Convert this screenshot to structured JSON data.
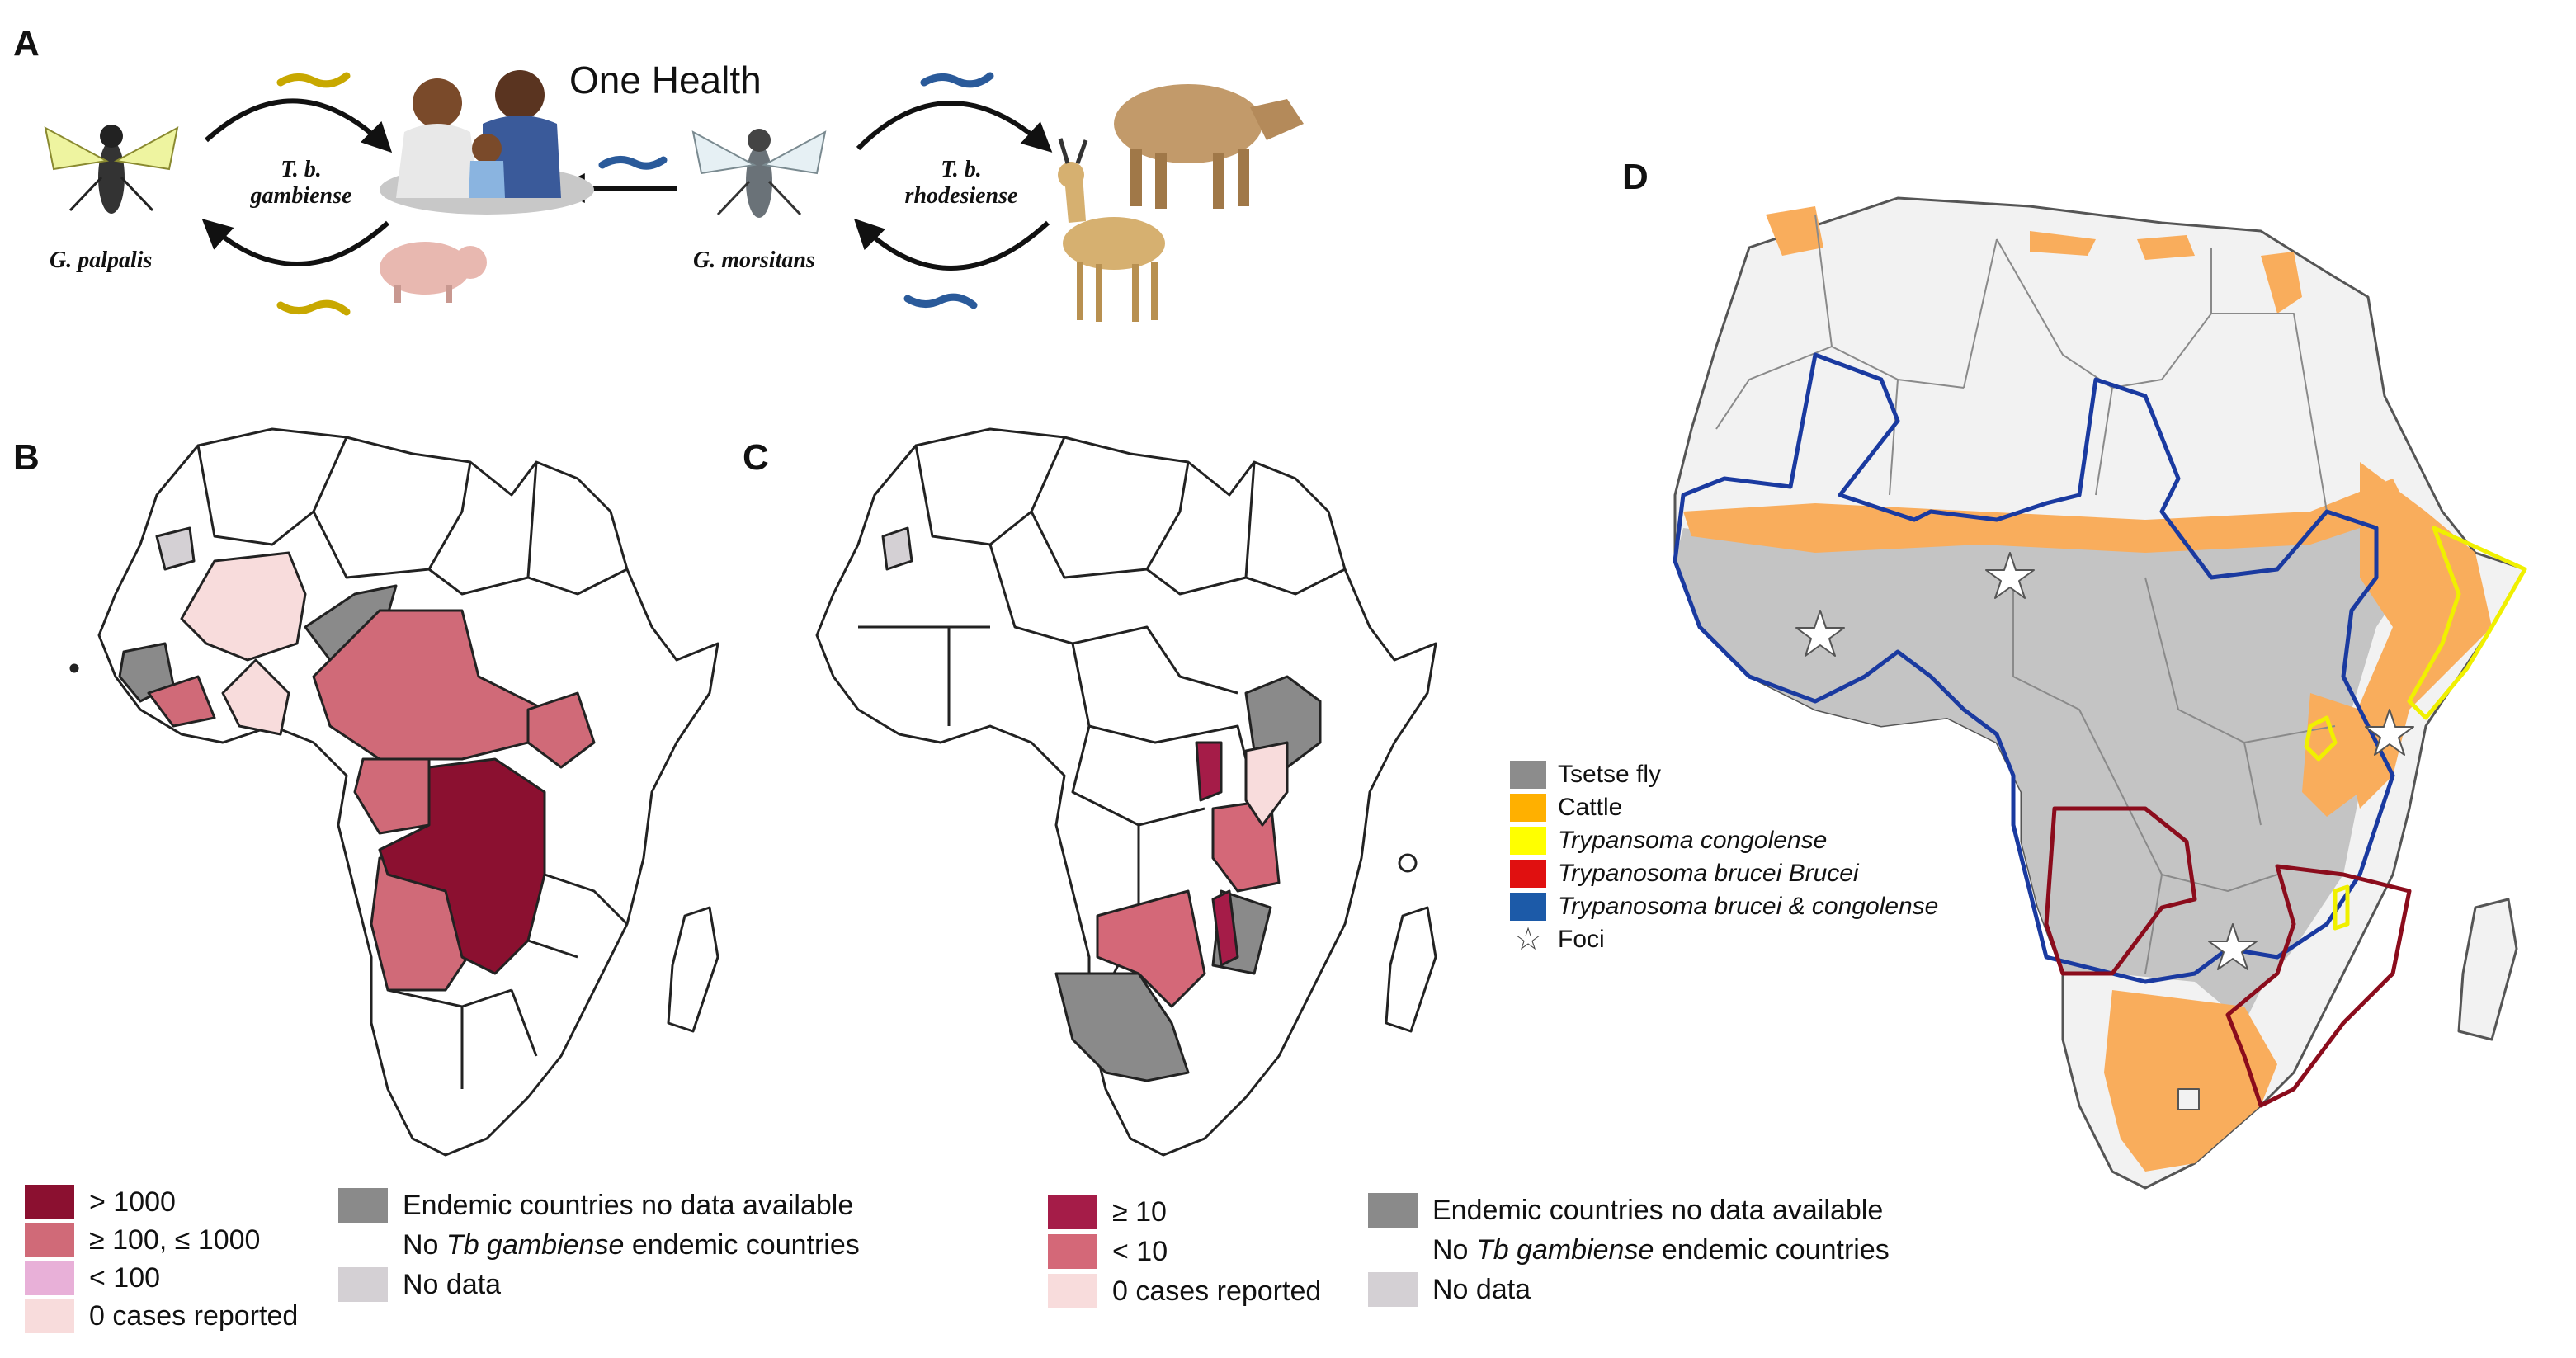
{
  "panels": {
    "a": "A",
    "b": "B",
    "c": "C",
    "d": "D"
  },
  "panel_a": {
    "title": "One Health",
    "cycle_left": "T. b. gambiense",
    "cycle_right": "T. b. rhodesiense",
    "vector_left": "G. palpalis",
    "vector_right": "G. morsitans"
  },
  "legend_b": {
    "items": [
      {
        "label": "> 1000",
        "color": "#8b1030"
      },
      {
        "label": "≥ 100, ≤ 1000",
        "color": "#d06a78"
      },
      {
        "label": "< 100",
        "color": "#e8b0d8"
      },
      {
        "label": "0 cases reported",
        "color": "#f8dcdc"
      }
    ],
    "grey_items": [
      {
        "label": "Endemic countries no data available",
        "color": "#8a8a8a"
      },
      {
        "prefix": "No ",
        "italic": "Tb gambiense",
        "suffix": " endemic countries",
        "color": "#ffffff"
      },
      {
        "label": "No data",
        "color": "#d4d0d4"
      }
    ]
  },
  "legend_c": {
    "items": [
      {
        "label": "≥ 10",
        "color": "#a51c48"
      },
      {
        "label": "< 10",
        "color": "#d46878"
      },
      {
        "label": "0 cases reported",
        "color": "#f8dcdc"
      }
    ],
    "grey_items": [
      {
        "label": "Endemic countries no data available",
        "color": "#8a8a8a"
      },
      {
        "prefix": "No ",
        "italic": "Tb gambiense",
        "suffix": " endemic countries",
        "color": "#ffffff"
      },
      {
        "label": "No data",
        "color": "#d4d0d4"
      }
    ]
  },
  "legend_d": {
    "items": [
      {
        "label": "Tsetse fly",
        "color": "#8c8c8c",
        "italic": false
      },
      {
        "label": "Cattle",
        "color": "#ffb000",
        "italic": false
      },
      {
        "label": "Trypansoma congolense",
        "color": "#ffff00",
        "italic": true
      },
      {
        "label": "Trypanosoma brucei Brucei",
        "color": "#e01010",
        "italic": true
      },
      {
        "label": "Trypanosoma brucei & congolense",
        "color": "#1c5aa8",
        "italic": true
      }
    ],
    "foci_label": "Foci",
    "foci_icon": "star-icon"
  },
  "colors": {
    "land_white": "#ffffff",
    "tsetse_grey": "#c4c4c4",
    "north_grey": "#f2f2f2",
    "cattle_orange": "#f9ad5c",
    "outline": "#222222",
    "blue_line": "#1a3aa0",
    "red_line": "#8b0c1c",
    "yellow_line": "#f0f000"
  }
}
